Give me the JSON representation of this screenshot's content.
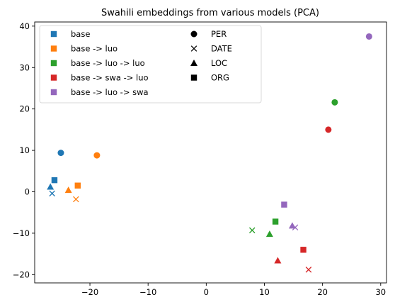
{
  "chart_data": {
    "type": "scatter",
    "title": "Swahili embeddings from various models (PCA)",
    "xlabel": "",
    "ylabel": "",
    "xlim": [
      -29.5,
      31
    ],
    "ylim": [
      -22,
      41
    ],
    "x_ticks": [
      -20,
      -10,
      0,
      10,
      20,
      30
    ],
    "y_ticks": [
      -20,
      -10,
      0,
      10,
      20,
      30,
      40
    ],
    "x_tick_labels": [
      "−20",
      "−10",
      "0",
      "10",
      "20",
      "30"
    ],
    "y_tick_labels": [
      "−20",
      "−10",
      "0",
      "10",
      "20",
      "30",
      "40"
    ],
    "grid": false,
    "legend_placement": "upper-left",
    "series": [
      {
        "name": "base -> luo -> swa",
        "color": "#9467bd",
        "points": [
          {
            "marker": "PER",
            "x": 28.0,
            "y": 37.5
          },
          {
            "marker": "DATE",
            "x": 15.3,
            "y": -8.6
          },
          {
            "marker": "LOC",
            "x": 14.8,
            "y": -8.2
          },
          {
            "marker": "ORG",
            "x": 13.4,
            "y": -3.1
          }
        ]
      },
      {
        "name": "base -> swa -> luo",
        "color": "#d62728",
        "points": [
          {
            "marker": "PER",
            "x": 21.0,
            "y": 15.0
          },
          {
            "marker": "DATE",
            "x": 17.6,
            "y": -18.8
          },
          {
            "marker": "LOC",
            "x": 12.3,
            "y": -16.6
          },
          {
            "marker": "ORG",
            "x": 16.7,
            "y": -14.0
          }
        ]
      },
      {
        "name": "base -> luo -> luo",
        "color": "#2ca02c",
        "points": [
          {
            "marker": "PER",
            "x": 22.1,
            "y": 21.6
          },
          {
            "marker": "DATE",
            "x": 7.9,
            "y": -9.3
          },
          {
            "marker": "LOC",
            "x": 10.9,
            "y": -10.2
          },
          {
            "marker": "ORG",
            "x": 11.9,
            "y": -7.2
          }
        ]
      },
      {
        "name": "base -> luo",
        "color": "#ff7f0e",
        "points": [
          {
            "marker": "PER",
            "x": -18.8,
            "y": 8.8
          },
          {
            "marker": "DATE",
            "x": -22.4,
            "y": -1.8
          },
          {
            "marker": "LOC",
            "x": -23.7,
            "y": 0.4
          },
          {
            "marker": "ORG",
            "x": -22.1,
            "y": 1.5
          }
        ]
      },
      {
        "name": "base",
        "color": "#1f77b4",
        "points": [
          {
            "marker": "PER",
            "x": -25.0,
            "y": 9.4
          },
          {
            "marker": "DATE",
            "x": -26.5,
            "y": -0.4
          },
          {
            "marker": "LOC",
            "x": -26.8,
            "y": 1.2
          },
          {
            "marker": "ORG",
            "x": -26.1,
            "y": 2.8
          }
        ]
      }
    ],
    "legend_models": [
      {
        "label": "base",
        "color": "#1f77b4"
      },
      {
        "label": "base -> luo",
        "color": "#ff7f0e"
      },
      {
        "label": "base -> luo -> luo",
        "color": "#2ca02c"
      },
      {
        "label": "base -> swa -> luo",
        "color": "#d62728"
      },
      {
        "label": "base -> luo -> swa",
        "color": "#9467bd"
      }
    ],
    "legend_markers": [
      {
        "label": "PER",
        "shape": "circle"
      },
      {
        "label": "DATE",
        "shape": "x"
      },
      {
        "label": "LOC",
        "shape": "triangle"
      },
      {
        "label": "ORG",
        "shape": "square"
      }
    ]
  }
}
